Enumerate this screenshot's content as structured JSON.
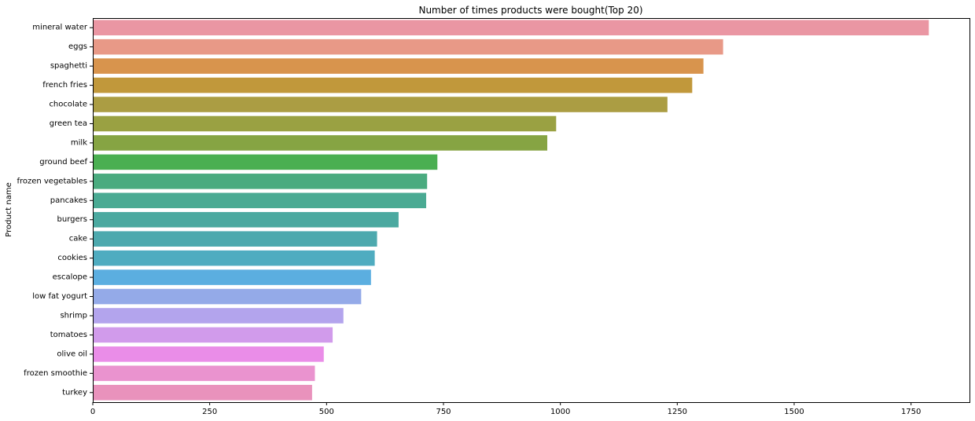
{
  "chart_data": {
    "type": "bar",
    "orientation": "horizontal",
    "title": "Number of times products were bought(Top 20)",
    "xlabel": "",
    "ylabel": "Product name",
    "xlim": [
      0,
      1875
    ],
    "xticks": [
      0,
      250,
      500,
      750,
      1000,
      1250,
      1500,
      1750
    ],
    "grid": false,
    "categories": [
      "mineral water",
      "eggs",
      "spaghetti",
      "french fries",
      "chocolate",
      "green tea",
      "milk",
      "ground beef",
      "frozen vegetables",
      "pancakes",
      "burgers",
      "cake",
      "cookies",
      "escalope",
      "low fat yogurt",
      "shrimp",
      "tomatoes",
      "olive oil",
      "frozen smoothie",
      "turkey"
    ],
    "values": [
      1788,
      1348,
      1306,
      1282,
      1229,
      991,
      972,
      737,
      715,
      713,
      654,
      608,
      603,
      595,
      574,
      536,
      513,
      494,
      475,
      469
    ],
    "colors": [
      "#ea96a3",
      "#e89987",
      "#d8944d",
      "#c1983b",
      "#ab9d43",
      "#9aa142",
      "#86a443",
      "#4aaf51",
      "#4aab7f",
      "#4aaa93",
      "#4ba9a0",
      "#4da9ae",
      "#4facc0",
      "#5baee0",
      "#94aae8",
      "#b3a4ed",
      "#d19beb",
      "#ea8de8",
      "#ea93cf",
      "#e992bc"
    ]
  }
}
